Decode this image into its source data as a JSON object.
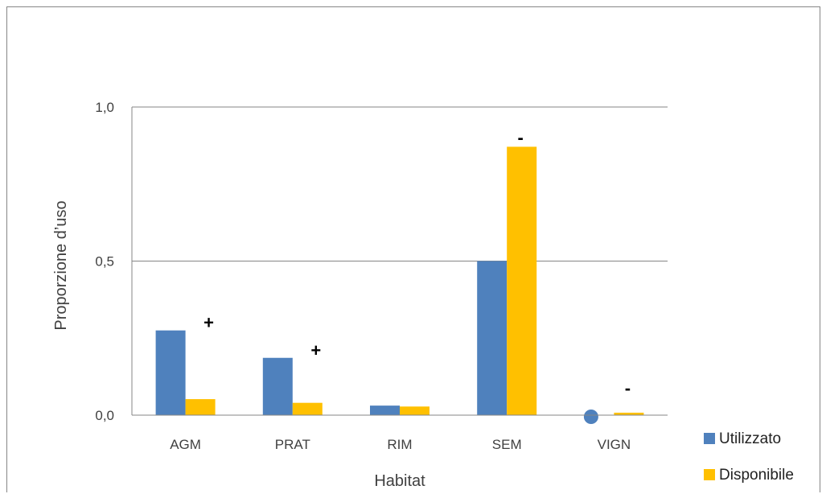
{
  "chart_data": {
    "type": "bar",
    "title": "",
    "xlabel": "Habitat",
    "ylabel": "Proporzione d’uso",
    "ylim": [
      0,
      1
    ],
    "yticks": [
      {
        "value": 0,
        "label": "0,0"
      },
      {
        "value": 0.5,
        "label": "0,5"
      },
      {
        "value": 1,
        "label": "1,0"
      }
    ],
    "grid": true,
    "categories": [
      "AGM",
      "PRAT",
      "RIM",
      "SEM",
      "VIGN"
    ],
    "series": [
      {
        "name": "Utilizzato",
        "color": "#4f81bd",
        "values": [
          0.275,
          0.186,
          0.031,
          0.5,
          0.0
        ]
      },
      {
        "name": "Disponibile",
        "color": "#ffc000",
        "values": [
          0.052,
          0.04,
          0.028,
          0.871,
          0.008
        ]
      }
    ],
    "markers": [
      "+",
      "+",
      "",
      "-",
      "-"
    ],
    "zero_marker_category": "VIGN",
    "legend_position": "bottom-right"
  }
}
